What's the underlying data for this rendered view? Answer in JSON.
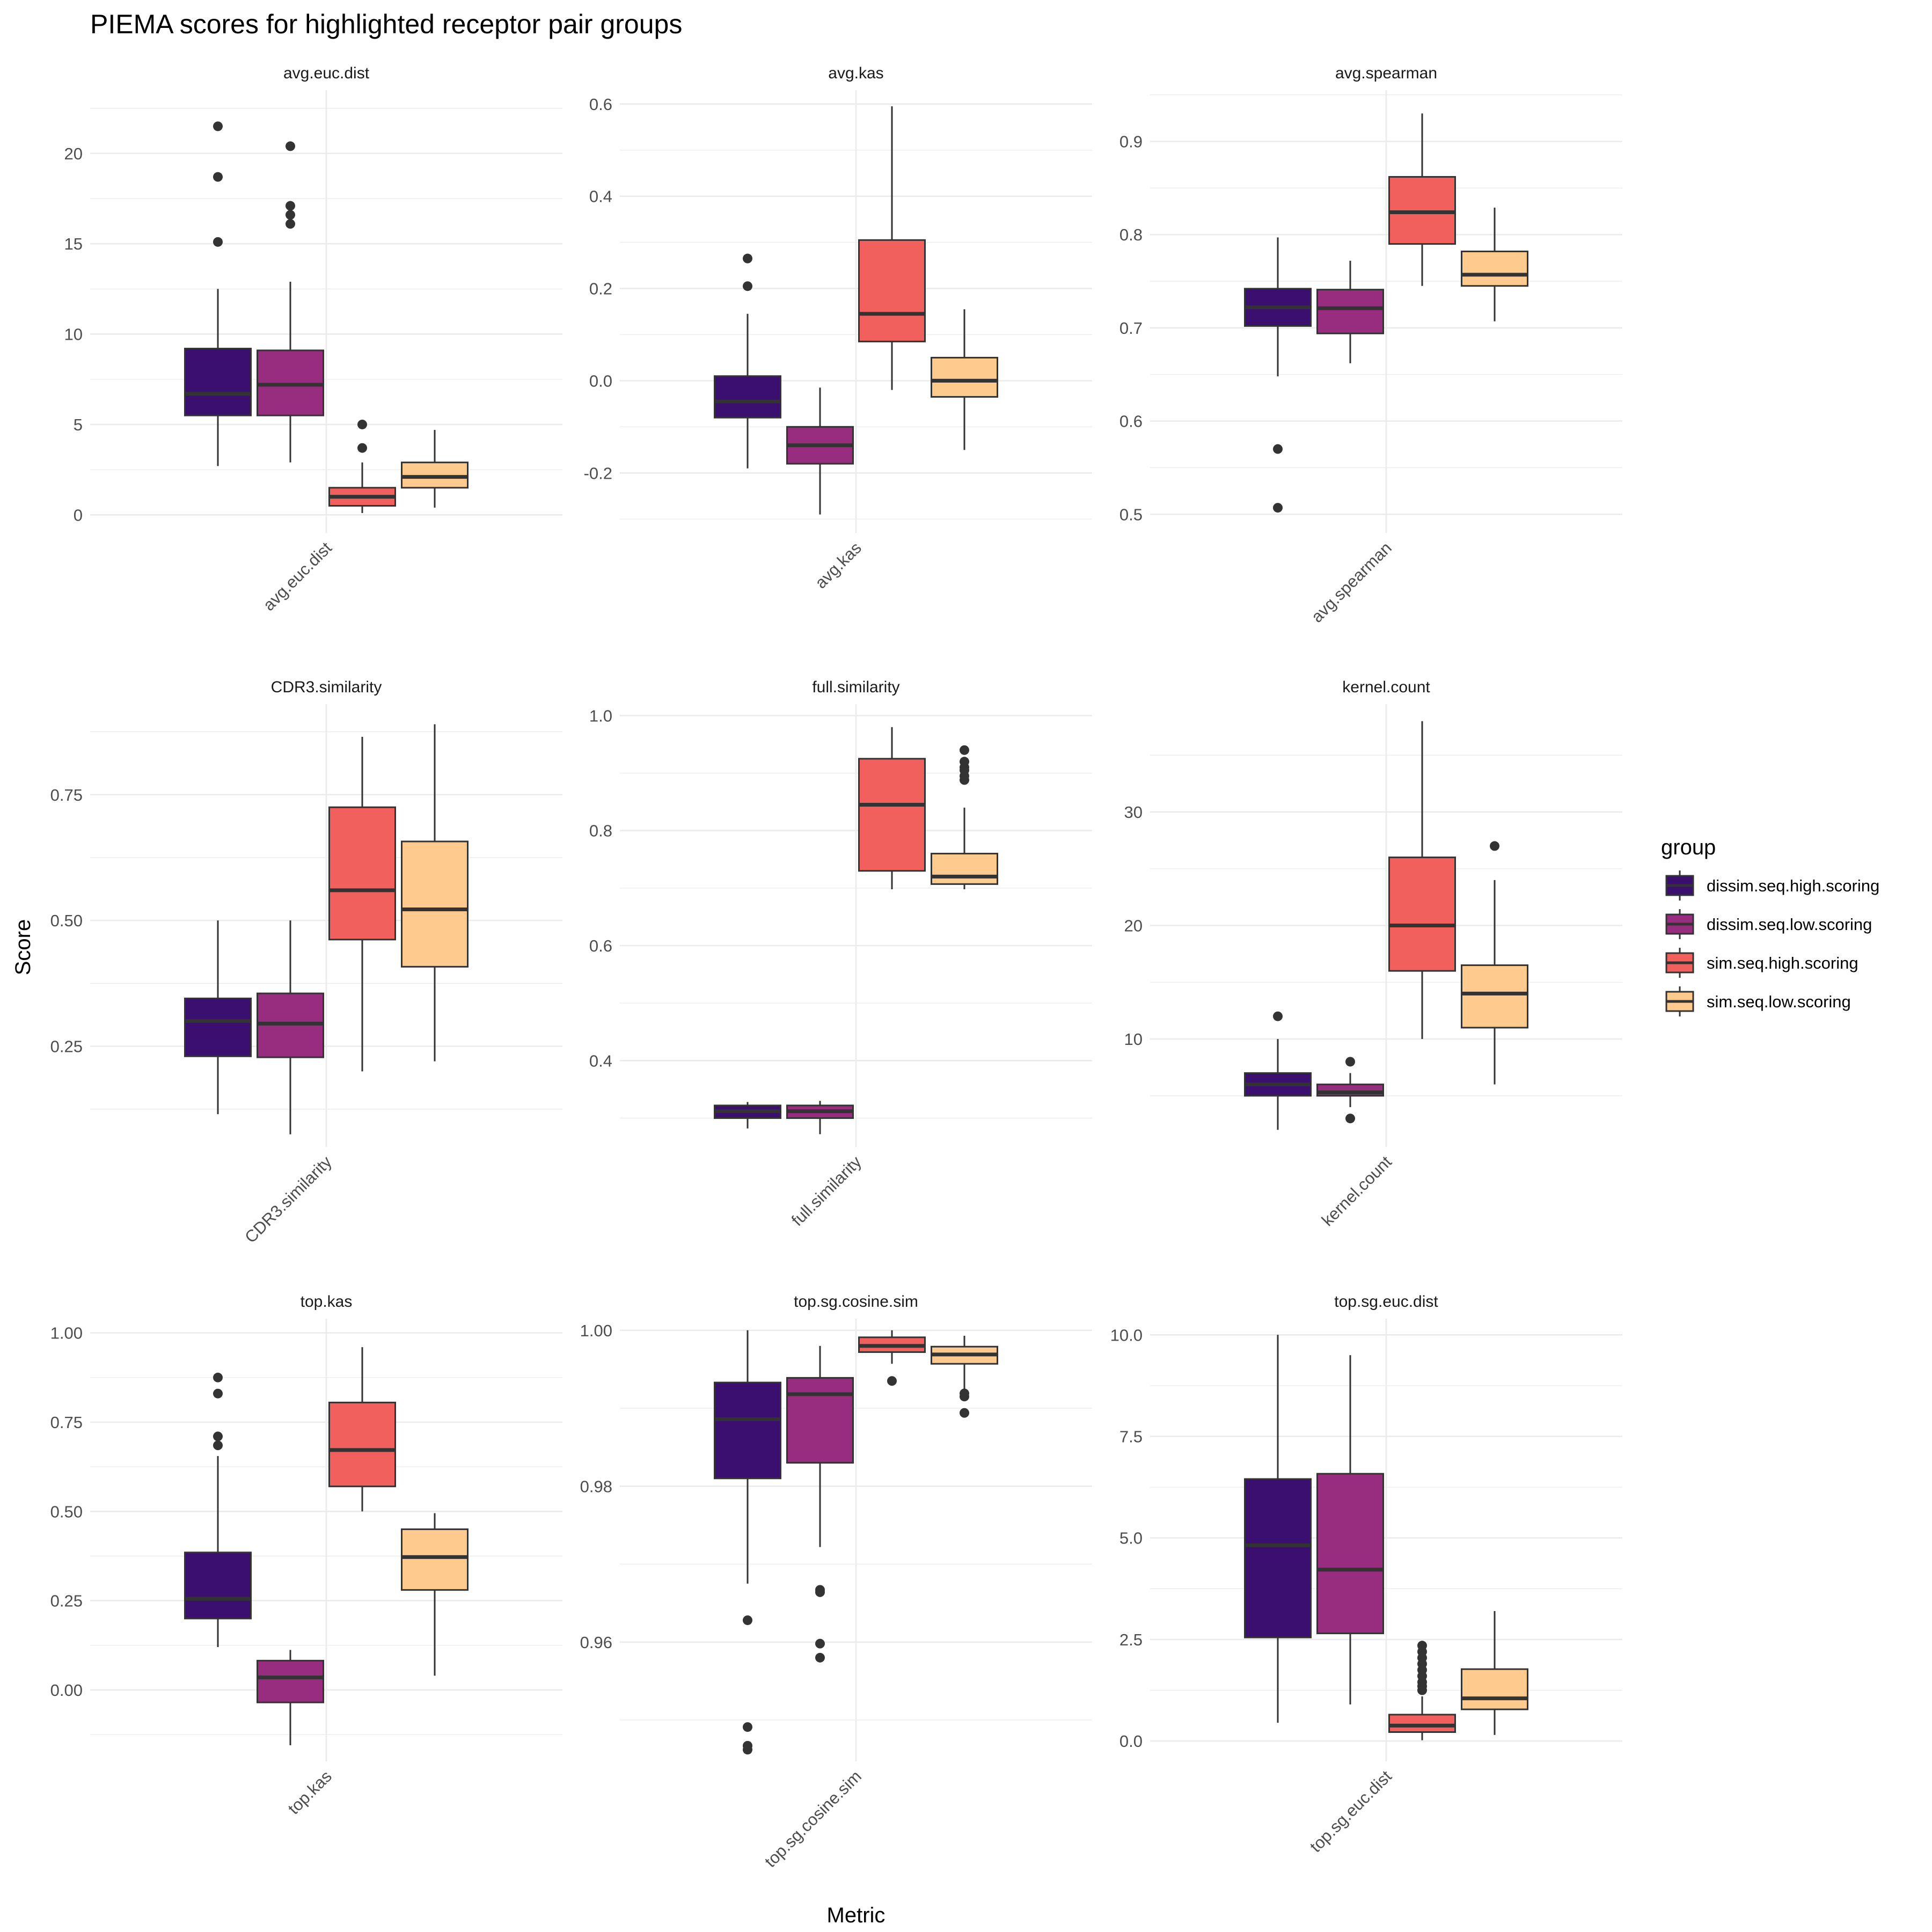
{
  "chart_data": {
    "type": "boxplot",
    "title": "PIEMA scores for highlighted receptor pair groups",
    "xlabel": "Metric",
    "ylabel": "Score",
    "legend": {
      "title": "group",
      "placement": "right",
      "entries": [
        {
          "name": "dissim.seq.high.scoring",
          "color": "#3b0f70"
        },
        {
          "name": "dissim.seq.low.scoring",
          "color": "#982d80"
        },
        {
          "name": "sim.seq.high.scoring",
          "color": "#f1605d"
        },
        {
          "name": "sim.seq.low.scoring",
          "color": "#feca8d"
        }
      ]
    },
    "colors": {
      "box_stroke": "#333333",
      "outlier": "#333333",
      "grid": "#ebebeb"
    },
    "grid": true,
    "facets": [
      {
        "name": "avg.euc.dist",
        "ylim": [
          -1,
          23.5
        ],
        "ticks": [
          0,
          5,
          10,
          15,
          20
        ],
        "tick_labels": [
          "0",
          "5",
          "10",
          "15",
          "20"
        ],
        "boxes": [
          {
            "group": "dissim.seq.high.scoring",
            "min": 2.7,
            "q1": 5.5,
            "median": 6.7,
            "q3": 9.2,
            "max": 12.5,
            "outliers": [
              15.1,
              18.7,
              21.5
            ]
          },
          {
            "group": "dissim.seq.low.scoring",
            "min": 2.9,
            "q1": 5.5,
            "median": 7.2,
            "q3": 9.1,
            "max": 12.9,
            "outliers": [
              16.1,
              16.6,
              17.1,
              20.4
            ]
          },
          {
            "group": "sim.seq.high.scoring",
            "min": 0.1,
            "q1": 0.5,
            "median": 1.0,
            "q3": 1.5,
            "max": 2.9,
            "outliers": [
              3.7,
              5.0
            ]
          },
          {
            "group": "sim.seq.low.scoring",
            "min": 0.4,
            "q1": 1.5,
            "median": 2.1,
            "q3": 2.9,
            "max": 4.7,
            "outliers": []
          }
        ]
      },
      {
        "name": "avg.kas",
        "ylim": [
          -0.33,
          0.63
        ],
        "ticks": [
          -0.2,
          0,
          0.2,
          0.4,
          0.6
        ],
        "tick_labels": [
          "-0.2",
          "0.0",
          "0.2",
          "0.4",
          "0.6"
        ],
        "boxes": [
          {
            "group": "dissim.seq.high.scoring",
            "min": -0.19,
            "q1": -0.08,
            "median": -0.045,
            "q3": 0.01,
            "max": 0.145,
            "outliers": [
              0.205,
              0.265
            ]
          },
          {
            "group": "dissim.seq.low.scoring",
            "min": -0.29,
            "q1": -0.18,
            "median": -0.14,
            "q3": -0.1,
            "max": -0.015,
            "outliers": []
          },
          {
            "group": "sim.seq.high.scoring",
            "min": -0.02,
            "q1": 0.085,
            "median": 0.145,
            "q3": 0.305,
            "max": 0.595,
            "outliers": []
          },
          {
            "group": "sim.seq.low.scoring",
            "min": -0.15,
            "q1": -0.035,
            "median": 0.0,
            "q3": 0.05,
            "max": 0.155,
            "outliers": []
          }
        ]
      },
      {
        "name": "avg.spearman",
        "ylim": [
          0.48,
          0.955
        ],
        "ticks": [
          0.5,
          0.6,
          0.7,
          0.8,
          0.9
        ],
        "tick_labels": [
          "0.5",
          "0.6",
          "0.7",
          "0.8",
          "0.9"
        ],
        "boxes": [
          {
            "group": "dissim.seq.high.scoring",
            "min": 0.648,
            "q1": 0.702,
            "median": 0.722,
            "q3": 0.742,
            "max": 0.797,
            "outliers": [
              0.507,
              0.57
            ]
          },
          {
            "group": "dissim.seq.low.scoring",
            "min": 0.662,
            "q1": 0.694,
            "median": 0.721,
            "q3": 0.741,
            "max": 0.772,
            "outliers": []
          },
          {
            "group": "sim.seq.high.scoring",
            "min": 0.745,
            "q1": 0.79,
            "median": 0.824,
            "q3": 0.862,
            "max": 0.93,
            "outliers": []
          },
          {
            "group": "sim.seq.low.scoring",
            "min": 0.707,
            "q1": 0.745,
            "median": 0.757,
            "q3": 0.782,
            "max": 0.829,
            "outliers": []
          }
        ]
      },
      {
        "name": "CDR3.similarity",
        "ylim": [
          0.05,
          0.93
        ],
        "ticks": [
          0.25,
          0.5,
          0.75
        ],
        "tick_labels": [
          "0.25",
          "0.50",
          "0.75"
        ],
        "boxes": [
          {
            "group": "dissim.seq.high.scoring",
            "min": 0.115,
            "q1": 0.23,
            "median": 0.3,
            "q3": 0.345,
            "max": 0.5,
            "outliers": []
          },
          {
            "group": "dissim.seq.low.scoring",
            "min": 0.075,
            "q1": 0.228,
            "median": 0.295,
            "q3": 0.355,
            "max": 0.5,
            "outliers": []
          },
          {
            "group": "sim.seq.high.scoring",
            "min": 0.2,
            "q1": 0.462,
            "median": 0.56,
            "q3": 0.725,
            "max": 0.865,
            "outliers": []
          },
          {
            "group": "sim.seq.low.scoring",
            "min": 0.22,
            "q1": 0.408,
            "median": 0.522,
            "q3": 0.657,
            "max": 0.89,
            "outliers": []
          }
        ]
      },
      {
        "name": "full.similarity",
        "ylim": [
          0.25,
          1.02
        ],
        "ticks": [
          0.4,
          0.6,
          0.8,
          1.0
        ],
        "tick_labels": [
          "0.4",
          "0.6",
          "0.8",
          "1.0"
        ],
        "boxes": [
          {
            "group": "dissim.seq.high.scoring",
            "min": 0.282,
            "q1": 0.3,
            "median": 0.312,
            "q3": 0.322,
            "max": 0.328,
            "outliers": []
          },
          {
            "group": "dissim.seq.low.scoring",
            "min": 0.272,
            "q1": 0.3,
            "median": 0.312,
            "q3": 0.322,
            "max": 0.33,
            "outliers": []
          },
          {
            "group": "sim.seq.high.scoring",
            "min": 0.698,
            "q1": 0.73,
            "median": 0.845,
            "q3": 0.925,
            "max": 0.98,
            "outliers": []
          },
          {
            "group": "sim.seq.low.scoring",
            "min": 0.698,
            "q1": 0.707,
            "median": 0.72,
            "q3": 0.76,
            "max": 0.84,
            "outliers": [
              0.888,
              0.895,
              0.905,
              0.91,
              0.92,
              0.94
            ]
          }
        ]
      },
      {
        "name": "kernel.count",
        "ylim": [
          0.5,
          39.5
        ],
        "ticks": [
          10,
          20,
          30
        ],
        "tick_labels": [
          "10",
          "20",
          "30"
        ],
        "boxes": [
          {
            "group": "dissim.seq.high.scoring",
            "min": 2,
            "q1": 5,
            "median": 6,
            "q3": 7,
            "max": 10,
            "outliers": [
              12
            ]
          },
          {
            "group": "dissim.seq.low.scoring",
            "min": 4,
            "q1": 5,
            "median": 5.3,
            "q3": 6,
            "max": 7,
            "outliers": [
              3,
              8
            ]
          },
          {
            "group": "sim.seq.high.scoring",
            "min": 10,
            "q1": 16,
            "median": 20,
            "q3": 26,
            "max": 38,
            "outliers": []
          },
          {
            "group": "sim.seq.low.scoring",
            "min": 6,
            "q1": 11,
            "median": 14,
            "q3": 16.5,
            "max": 24,
            "outliers": [
              27
            ]
          }
        ]
      },
      {
        "name": "top.kas",
        "ylim": [
          -0.2,
          1.04
        ],
        "ticks": [
          0,
          0.25,
          0.5,
          0.75,
          1.0
        ],
        "tick_labels": [
          "0.00",
          "0.25",
          "0.50",
          "0.75",
          "1.00"
        ],
        "boxes": [
          {
            "group": "dissim.seq.high.scoring",
            "min": 0.12,
            "q1": 0.2,
            "median": 0.255,
            "q3": 0.385,
            "max": 0.655,
            "outliers": [
              0.685,
              0.71,
              0.83,
              0.875
            ]
          },
          {
            "group": "dissim.seq.low.scoring",
            "min": -0.155,
            "q1": -0.035,
            "median": 0.035,
            "q3": 0.082,
            "max": 0.112,
            "outliers": []
          },
          {
            "group": "sim.seq.high.scoring",
            "min": 0.5,
            "q1": 0.57,
            "median": 0.672,
            "q3": 0.805,
            "max": 0.96,
            "outliers": []
          },
          {
            "group": "sim.seq.low.scoring",
            "min": 0.04,
            "q1": 0.28,
            "median": 0.372,
            "q3": 0.45,
            "max": 0.495,
            "outliers": []
          }
        ]
      },
      {
        "name": "top.sg.cosine.sim",
        "ylim": [
          0.9447,
          1.0015
        ],
        "ticks": [
          0.96,
          0.98,
          1.0
        ],
        "tick_labels": [
          "0.96",
          "0.98",
          "1.00"
        ],
        "boxes": [
          {
            "group": "dissim.seq.high.scoring",
            "min": 0.9675,
            "q1": 0.981,
            "median": 0.9886,
            "q3": 0.9933,
            "max": 1.0,
            "outliers": [
              0.9462,
              0.9467,
              0.9491,
              0.9628
            ]
          },
          {
            "group": "dissim.seq.low.scoring",
            "min": 0.9722,
            "q1": 0.983,
            "median": 0.9918,
            "q3": 0.9939,
            "max": 0.998,
            "outliers": [
              0.958,
              0.9598,
              0.9664,
              0.9667
            ]
          },
          {
            "group": "sim.seq.high.scoring",
            "min": 0.9957,
            "q1": 0.9972,
            "median": 0.998,
            "q3": 0.9991,
            "max": 1.0,
            "outliers": [
              0.9935
            ]
          },
          {
            "group": "sim.seq.low.scoring",
            "min": 0.9925,
            "q1": 0.9957,
            "median": 0.9969,
            "q3": 0.9979,
            "max": 0.9993,
            "outliers": [
              0.9894,
              0.9915,
              0.9919
            ]
          }
        ]
      },
      {
        "name": "top.sg.euc.dist",
        "ylim": [
          -0.5,
          10.4
        ],
        "ticks": [
          0,
          2.5,
          5,
          7.5,
          10
        ],
        "tick_labels": [
          "0.0",
          "2.5",
          "5.0",
          "7.5",
          "10.0"
        ],
        "boxes": [
          {
            "group": "dissim.seq.high.scoring",
            "min": 0.45,
            "q1": 2.55,
            "median": 4.82,
            "q3": 6.45,
            "max": 10.0,
            "outliers": []
          },
          {
            "group": "dissim.seq.low.scoring",
            "min": 0.9,
            "q1": 2.65,
            "median": 4.22,
            "q3": 6.58,
            "max": 9.5,
            "outliers": []
          },
          {
            "group": "sim.seq.high.scoring",
            "min": 0.02,
            "q1": 0.22,
            "median": 0.38,
            "q3": 0.65,
            "max": 1.1,
            "outliers": [
              1.25,
              1.35,
              1.45,
              1.6,
              1.75,
              1.9,
              2.05,
              2.2,
              2.35
            ]
          },
          {
            "group": "sim.seq.low.scoring",
            "min": 0.15,
            "q1": 0.78,
            "median": 1.05,
            "q3": 1.77,
            "max": 3.2,
            "outliers": []
          }
        ]
      }
    ]
  }
}
